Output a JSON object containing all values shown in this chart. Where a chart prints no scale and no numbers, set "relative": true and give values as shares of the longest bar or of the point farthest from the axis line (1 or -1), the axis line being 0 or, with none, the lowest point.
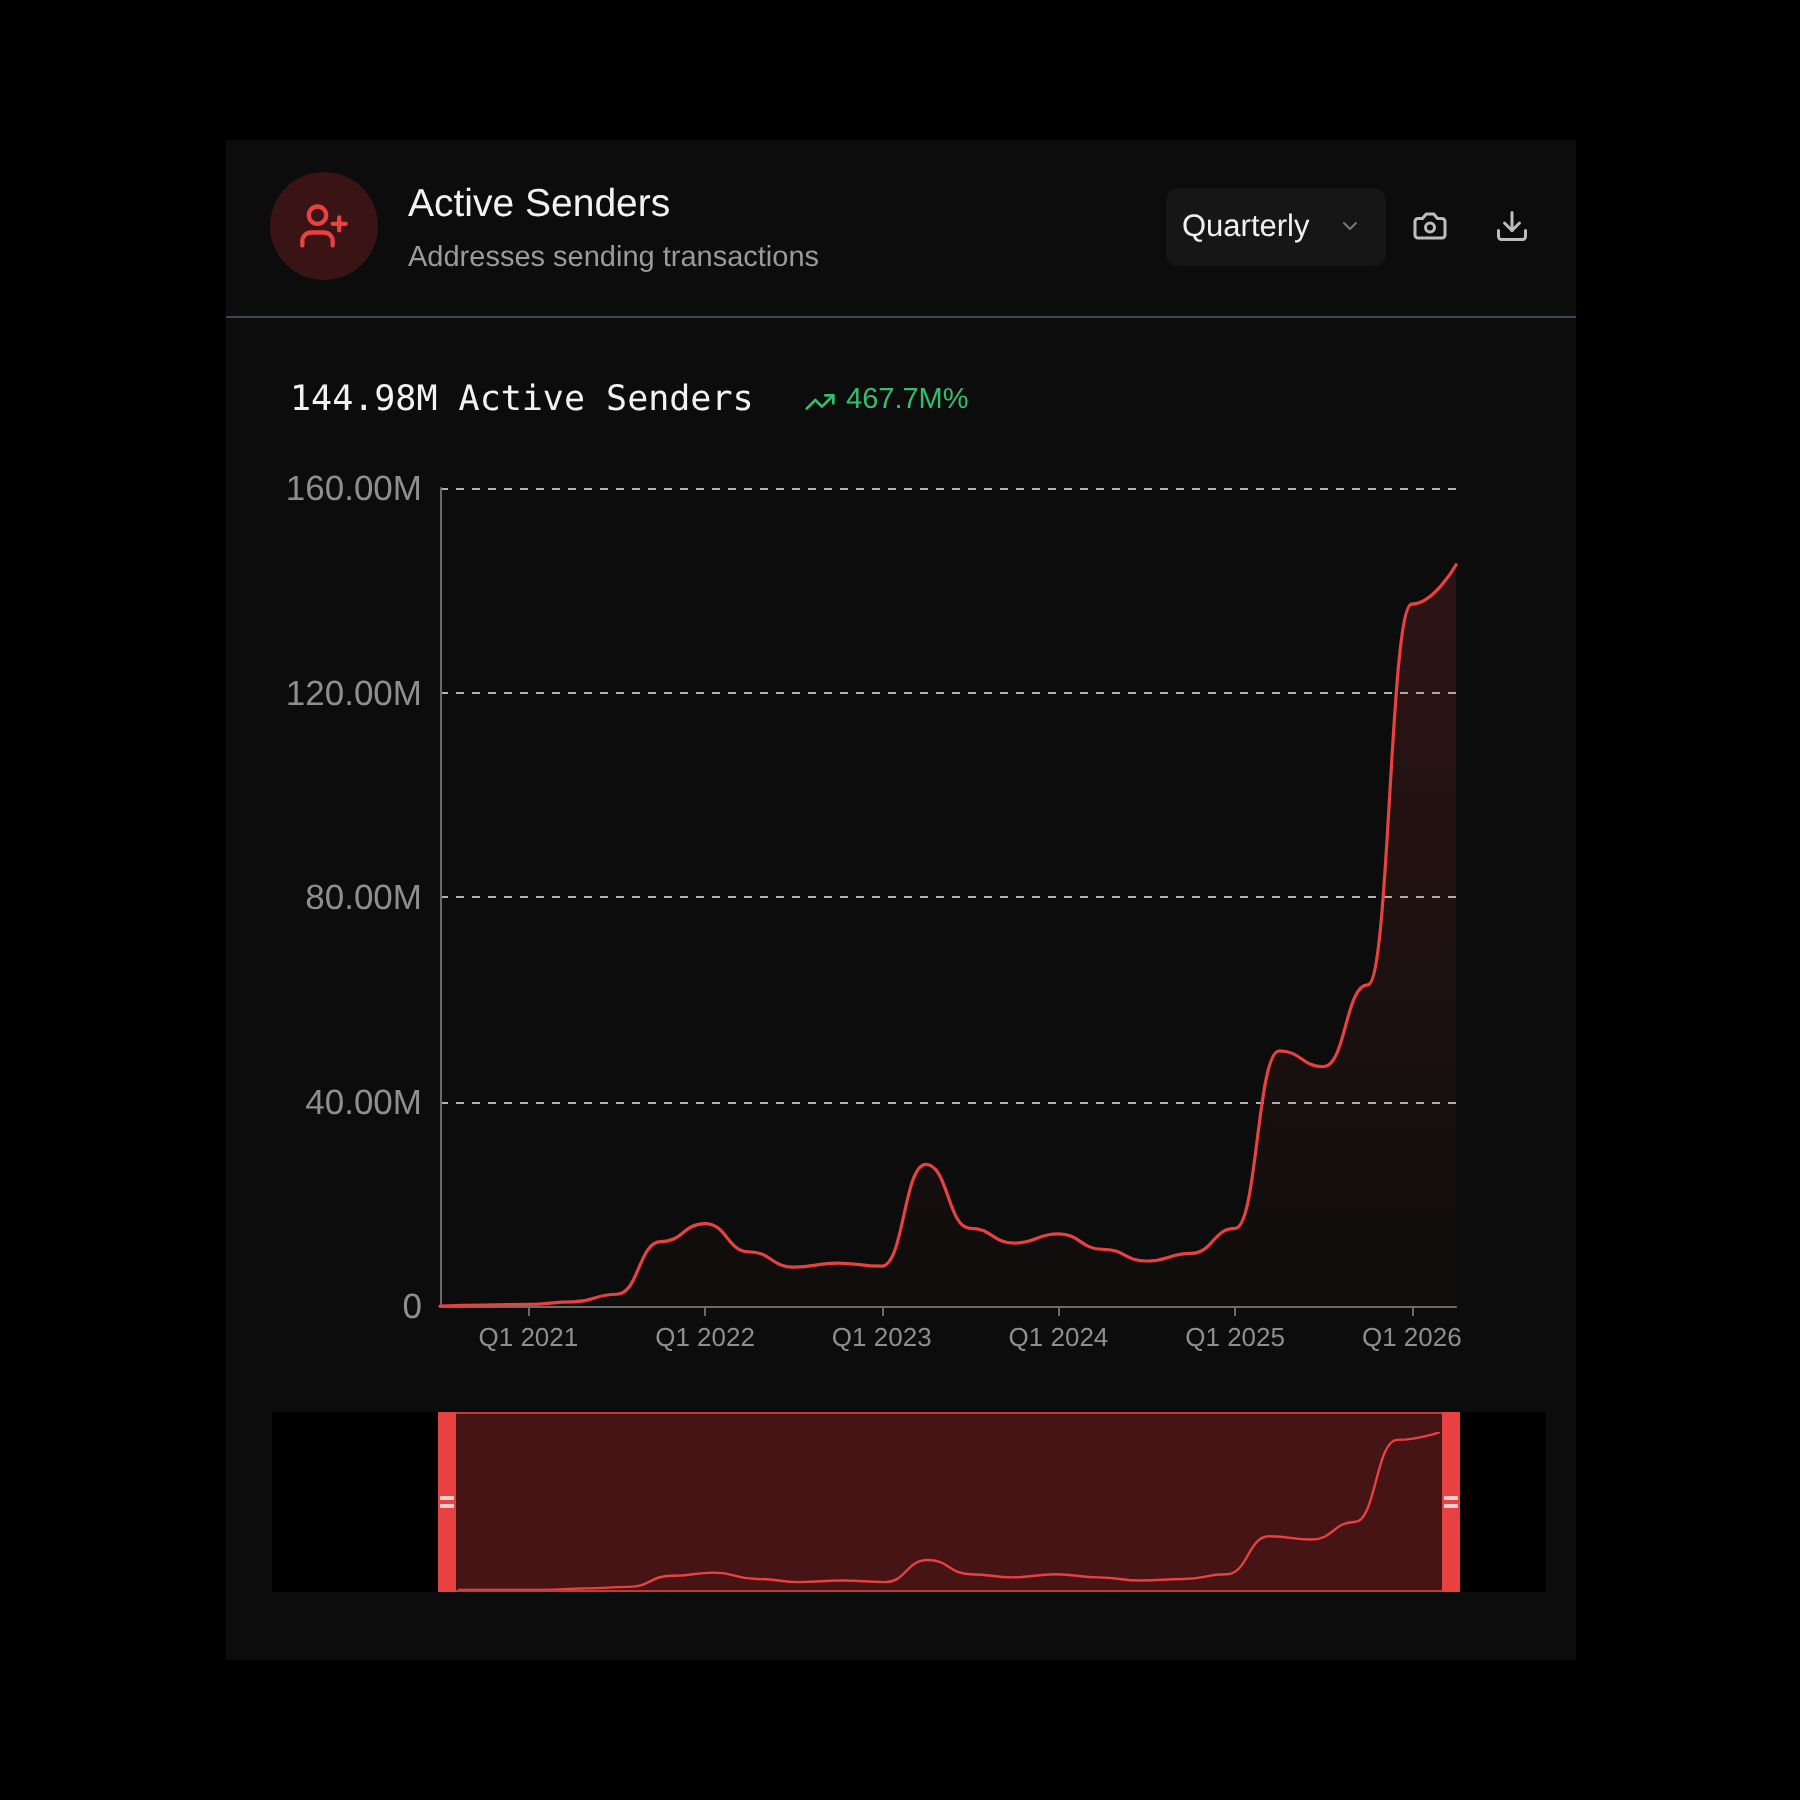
{
  "chart_data": [
    {
      "type": "area",
      "title": "Active Senders",
      "subtitle": "Addresses sending transactions",
      "annotations": [
        "Quarterly",
        "144.98M Active Senders",
        "467.7M%"
      ],
      "categories": [
        null,
        null,
        "Q1 2021",
        null,
        null,
        null,
        "Q1 2022",
        null,
        null,
        null,
        "Q1 2023",
        null,
        null,
        null,
        "Q1 2024",
        null,
        null,
        null,
        "Q1 2025",
        null,
        null,
        null,
        "Q1 2026",
        null
      ],
      "values": [
        0,
        0.2,
        0.3,
        0.8,
        2.3,
        12.6,
        16.1,
        10.6,
        7.6,
        8.4,
        7.8,
        27.7,
        15.2,
        12.3,
        14.1,
        11.1,
        8.8,
        10.3,
        15.2,
        49.9,
        46.8,
        62.8,
        137.3,
        145
      ],
      "color": "#e84142",
      "ylim": [
        0,
        160
      ],
      "yticks": [
        0,
        {
          "value": 40,
          "label": "40.00M"
        },
        {
          "value": 80,
          "label": "80.00M"
        },
        {
          "value": 120,
          "label": "120.00M"
        },
        {
          "value": 160,
          "label": "160.00M"
        }
      ],
      "grid": "y"
    },
    {
      "type": "line",
      "relative": true,
      "tick_labels": false,
      "categories": [
        null,
        null,
        null,
        null,
        null,
        null,
        null,
        null,
        null,
        null,
        null,
        null,
        null,
        null,
        null,
        null,
        null,
        null,
        null,
        null,
        null,
        null,
        null,
        null
      ],
      "values": [
        0,
        0,
        0,
        0.01,
        0.02,
        0.09,
        0.11,
        0.07,
        0.05,
        0.06,
        0.05,
        0.19,
        0.1,
        0.08,
        0.1,
        0.08,
        0.06,
        0.07,
        0.1,
        0.34,
        0.32,
        0.43,
        0.95,
        1
      ],
      "color": "#e84142"
    }
  ]
}
